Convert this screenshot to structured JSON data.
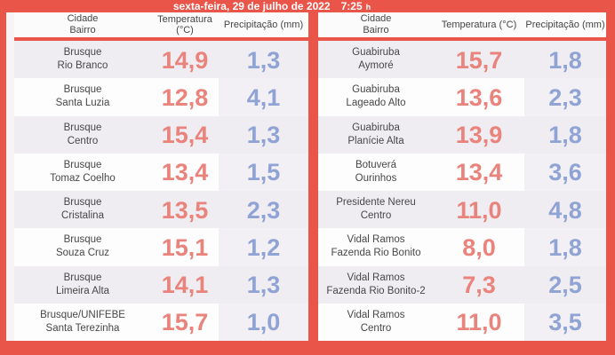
{
  "title_bar": {
    "date": "sexta-feira, 29 de julho de 2022",
    "time": "7:25",
    "time_unit": "h"
  },
  "colors": {
    "accent_red": "#e95549",
    "temperature_text": "#e9837b",
    "precipitation_text": "#8fa3d4",
    "row_stripe": "#efedf2",
    "row_white": "#fdfdfe"
  },
  "chart_data": {
    "type": "table",
    "title": "sexta-feira, 29 de julho de 2022 7:25 h",
    "tables": [
      {
        "columns": {
          "city": "Cidade",
          "district": "Bairro",
          "temperature": "Temperatura (°C)",
          "precipitation": "Precipitação (mm)"
        },
        "rows": [
          {
            "city": "Brusque",
            "district": "Rio Branco",
            "temperature_c": "14,9",
            "precipitation_mm": "1,3"
          },
          {
            "city": "Brusque",
            "district": "Santa Luzia",
            "temperature_c": "12,8",
            "precipitation_mm": "4,1"
          },
          {
            "city": "Brusque",
            "district": "Centro",
            "temperature_c": "15,4",
            "precipitation_mm": "1,3"
          },
          {
            "city": "Brusque",
            "district": "Tomaz Coelho",
            "temperature_c": "13,4",
            "precipitation_mm": "1,5"
          },
          {
            "city": "Brusque",
            "district": "Cristalina",
            "temperature_c": "13,5",
            "precipitation_mm": "2,3"
          },
          {
            "city": "Brusque",
            "district": "Souza Cruz",
            "temperature_c": "15,1",
            "precipitation_mm": "1,2"
          },
          {
            "city": "Brusque",
            "district": "Limeira Alta",
            "temperature_c": "14,1",
            "precipitation_mm": "1,3"
          },
          {
            "city": "Brusque/UNIFEBE",
            "district": "Santa Terezinha",
            "temperature_c": "15,7",
            "precipitation_mm": "1,0"
          }
        ]
      },
      {
        "columns": {
          "city": "Cidade",
          "district": "Bairro",
          "temperature": "Temperatura (°C)",
          "precipitation": "Precipitação (mm)"
        },
        "rows": [
          {
            "city": "Guabiruba",
            "district": "Aymoré",
            "temperature_c": "15,7",
            "precipitation_mm": "1,8"
          },
          {
            "city": "Guabiruba",
            "district": "Lageado Alto",
            "temperature_c": "13,6",
            "precipitation_mm": "2,3"
          },
          {
            "city": "Guabiruba",
            "district": "Planície Alta",
            "temperature_c": "13,9",
            "precipitation_mm": "1,8"
          },
          {
            "city": "Botuverá",
            "district": "Ourinhos",
            "temperature_c": "13,4",
            "precipitation_mm": "3,6"
          },
          {
            "city": "Presidente Nereu",
            "district": "Centro",
            "temperature_c": "11,0",
            "precipitation_mm": "4,8"
          },
          {
            "city": "Vidal Ramos",
            "district": "Fazenda Rio Bonito",
            "temperature_c": "8,0",
            "precipitation_mm": "1,8"
          },
          {
            "city": "Vidal Ramos",
            "district": "Fazenda Rio Bonito-2",
            "temperature_c": "7,3",
            "precipitation_mm": "2,5"
          },
          {
            "city": "Vidal Ramos",
            "district": "Centro",
            "temperature_c": "11,0",
            "precipitation_mm": "3,5"
          }
        ]
      }
    ]
  }
}
